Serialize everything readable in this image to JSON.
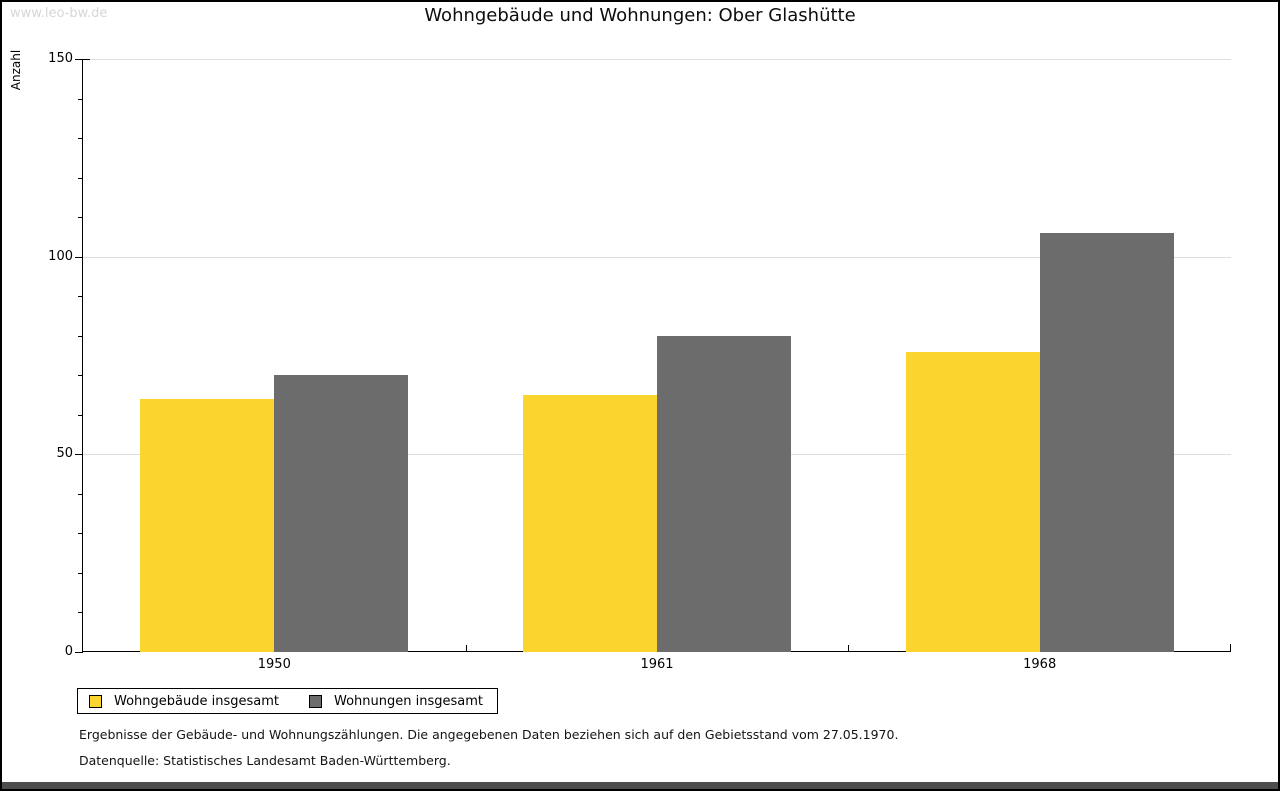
{
  "watermark": "www.leo-bw.de",
  "chart_data": {
    "type": "bar",
    "title": "Wohngebäude und Wohnungen: Ober Glashütte",
    "ylabel": "Anzahl",
    "xlabel": "",
    "categories": [
      "1950",
      "1961",
      "1968"
    ],
    "series": [
      {
        "name": "Wohngebäude insgesamt",
        "color": "#fcd42e",
        "values": [
          64,
          65,
          76
        ]
      },
      {
        "name": "Wohnungen insgesamt",
        "color": "#6c6c6c",
        "values": [
          70,
          80,
          106
        ]
      }
    ],
    "ylim": [
      0,
      150
    ],
    "ytick_major": 50,
    "ytick_minor": 10,
    "grid": "horizontal-major-light",
    "legend_position": "bottom-left",
    "gridline_color": "#dedede"
  },
  "footnotes": [
    "Ergebnisse der Gebäude- und Wohnungszählungen. Die angegebenen Daten beziehen sich auf den Gebietsstand vom 27.05.1970.",
    "Datenquelle: Statistisches Landesamt Baden-Württemberg."
  ]
}
